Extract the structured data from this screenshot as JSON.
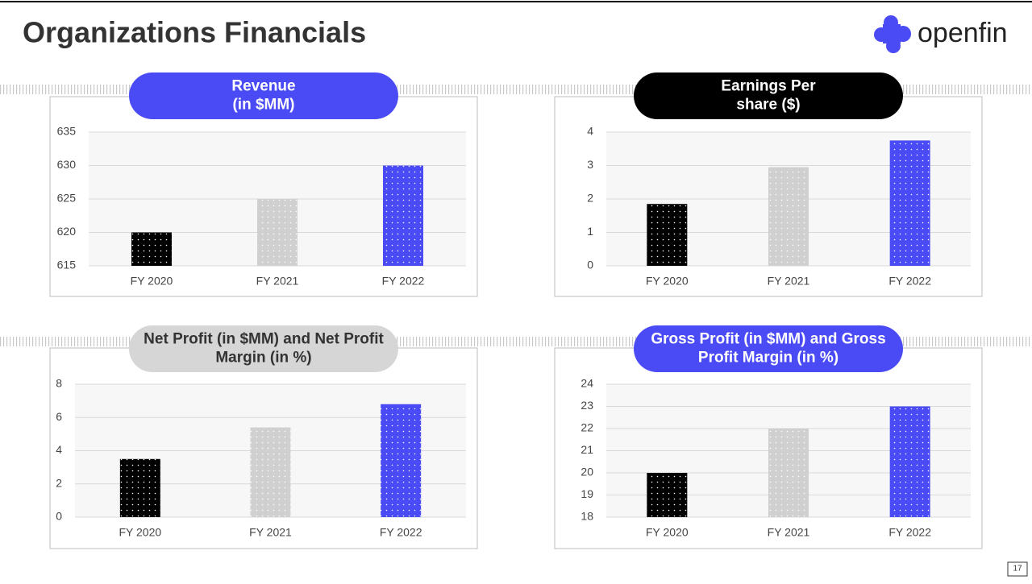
{
  "header": {
    "title": "Organizations Financials",
    "logo": "openfin"
  },
  "page_number": "17",
  "chart_data": [
    {
      "type": "bar",
      "title": [
        "Revenue",
        "(in $MM)"
      ],
      "title_background": "#4b4bf5",
      "categories": [
        "FY 2020",
        "FY 2021",
        "FY 2022"
      ],
      "values": [
        620,
        625,
        630
      ],
      "colors": [
        "#000000",
        "#d0d0d0",
        "#4b4bf5"
      ],
      "ylim": [
        615,
        635
      ],
      "yticks": [
        615,
        620,
        625,
        630,
        635
      ],
      "grid": true
    },
    {
      "type": "bar",
      "title": [
        "Earnings Per",
        "share ($)"
      ],
      "title_background": "#000000",
      "categories": [
        "FY 2020",
        "FY 2021",
        "FY 2022"
      ],
      "values": [
        1.85,
        2.95,
        3.75
      ],
      "colors": [
        "#000000",
        "#d0d0d0",
        "#4b4bf5"
      ],
      "ylim": [
        0,
        4
      ],
      "yticks": [
        0,
        1,
        2,
        3,
        4
      ],
      "grid": true
    },
    {
      "type": "bar",
      "title": [
        "Net Profit (in $MM) and Net Profit",
        "Margin (in %)"
      ],
      "title_background": "#d6d6d6",
      "categories": [
        "FY 2020",
        "FY 2021",
        "FY 2022"
      ],
      "values": [
        3.5,
        5.4,
        6.8
      ],
      "colors": [
        "#000000",
        "#d0d0d0",
        "#4b4bf5"
      ],
      "ylim": [
        0,
        8
      ],
      "yticks": [
        0,
        2,
        4,
        6,
        8
      ],
      "grid": true
    },
    {
      "type": "bar",
      "title": [
        "Gross Profit (in $MM) and Gross",
        "Profit Margin (in %)"
      ],
      "title_background": "#4b4bf5",
      "categories": [
        "FY 2020",
        "FY 2021",
        "FY 2022"
      ],
      "values": [
        20,
        22,
        23
      ],
      "colors": [
        "#000000",
        "#d0d0d0",
        "#4b4bf5"
      ],
      "ylim": [
        18,
        24
      ],
      "yticks": [
        18,
        19,
        20,
        21,
        22,
        23,
        24
      ],
      "grid": true
    }
  ]
}
